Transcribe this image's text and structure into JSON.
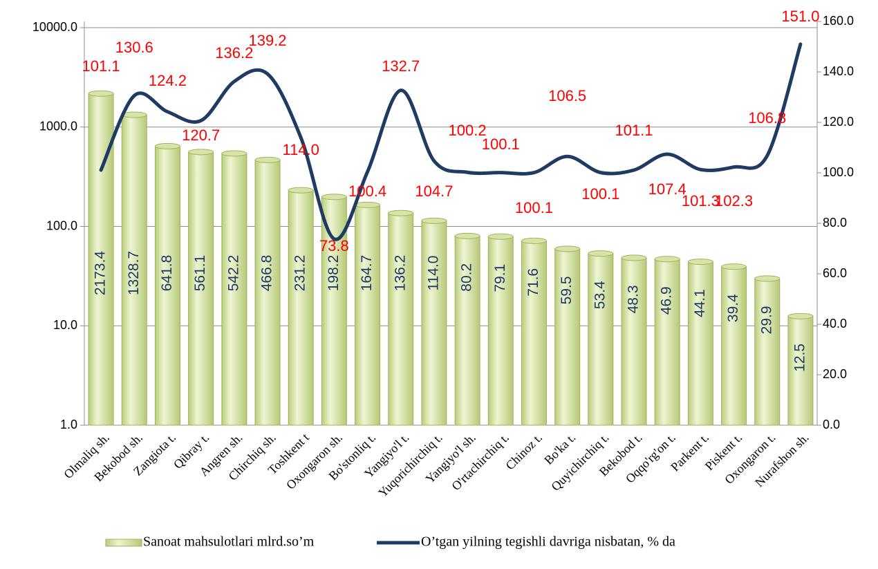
{
  "chart_data": {
    "type": "bar-line",
    "categories": [
      "Olmaliq sh.",
      "Bekobod sh.",
      "Zangiota t.",
      "Qibray t.",
      "Angren sh.",
      "Chirchiq sh.",
      "Toshkent t",
      "Oxongaron sh.",
      "Bo'stonliq t.",
      "Yangiyo'l t.",
      "Yuqorichirchiq t.",
      "Yangiyo'l sh.",
      "O'rtachirchiq t.",
      "Chinoz t.",
      "Bo'ka t.",
      "Quyichirchiq t.",
      "Bekobod t.",
      "Oqqo'rg'on t.",
      "Parkent t.",
      "Piskent t.",
      "Oxongaron t.",
      "Nurafshon sh."
    ],
    "series": [
      {
        "name": "Sanoat mahsulotlari  mlrd.so’m",
        "type": "bar",
        "color": "#d7e4a8",
        "values": [
          2173.4,
          1328.7,
          641.8,
          561.1,
          542.2,
          466.8,
          231.2,
          198.2,
          164.7,
          136.2,
          114.0,
          80.2,
          79.1,
          71.6,
          59.5,
          53.4,
          48.3,
          46.9,
          44.1,
          39.4,
          29.9,
          12.5
        ],
        "value_labels": [
          "2173.4",
          "1328.7",
          "641.8",
          "561.1",
          "542.2",
          "466.8",
          "231.2",
          "198.2",
          "164.7",
          "136.2",
          "114.0",
          "80.2",
          "79.1",
          "71.6",
          "59.5",
          "53.4",
          "48.3",
          "46.9",
          "44.1",
          "39.4",
          "29.9",
          "12.5"
        ]
      },
      {
        "name": "O’tgan yilning tegishli davriga nisbatan, % da",
        "type": "line",
        "axis": "y2",
        "color": "#1f3b63",
        "values": [
          101.1,
          130.6,
          124.2,
          120.7,
          136.2,
          139.2,
          114.0,
          73.8,
          100.4,
          132.7,
          104.7,
          100.2,
          100.1,
          100.1,
          106.5,
          100.1,
          101.1,
          107.4,
          101.3,
          102.3,
          106.8,
          151.0
        ],
        "value_labels": [
          "101.1",
          "130.6",
          "124.2",
          "120.7",
          "136.2",
          "139.2",
          "114.0",
          "73.8",
          "100.4",
          "132.7",
          "104.7",
          "100.2",
          "100.1",
          "100.1",
          "106.5",
          "100.1",
          "101.1",
          "107.4",
          "101.3",
          "102.3",
          "106.8",
          "151.0"
        ]
      }
    ],
    "ylog": true,
    "ylim": [
      1,
      10000
    ],
    "yticks": [
      {
        "value": 1,
        "label": "1.0"
      },
      {
        "value": 10,
        "label": "10.0"
      },
      {
        "value": 100,
        "label": "100.0"
      },
      {
        "value": 1000,
        "label": "1000.0"
      },
      {
        "value": 10000,
        "label": "10000.0"
      }
    ],
    "y2lim": [
      0,
      160
    ],
    "y2ticks": [
      {
        "value": 0,
        "label": "0.0"
      },
      {
        "value": 20,
        "label": "20.0"
      },
      {
        "value": 40,
        "label": "40.0"
      },
      {
        "value": 60,
        "label": "60.0"
      },
      {
        "value": 80,
        "label": "80.0"
      },
      {
        "value": 100,
        "label": "100.0"
      },
      {
        "value": 120,
        "label": "120.0"
      },
      {
        "value": 140,
        "label": "140.0"
      },
      {
        "value": 160,
        "label": "160.0"
      }
    ],
    "grid": true,
    "legend": "bottom"
  }
}
